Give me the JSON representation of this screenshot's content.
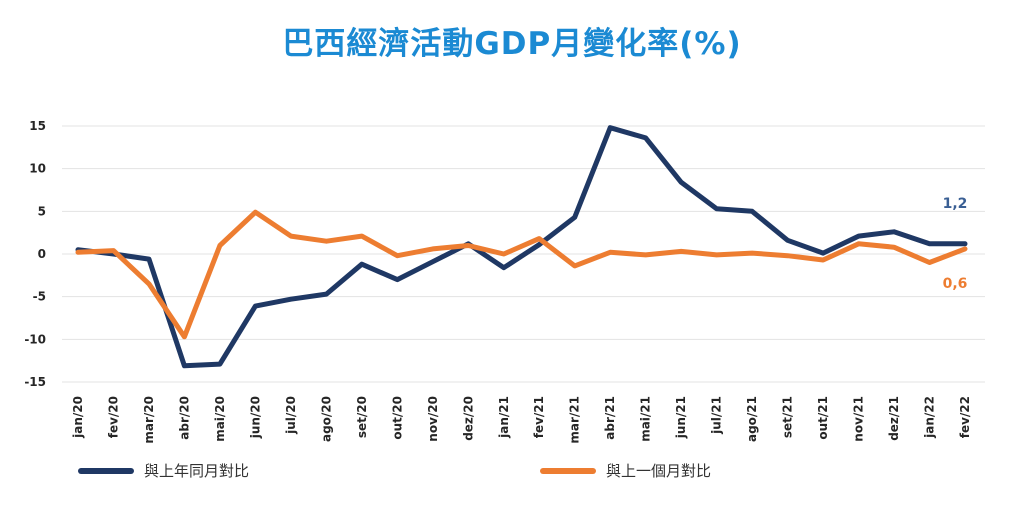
{
  "title": "巴西經濟活動GDP月變化率(%)",
  "chart_data": {
    "type": "line",
    "title": "巴西經濟活動GDP月變化率(%)",
    "categories": [
      "jan/20",
      "fev/20",
      "mar/20",
      "abr/20",
      "mai/20",
      "jun/20",
      "jul/20",
      "ago/20",
      "set/20",
      "out/20",
      "nov/20",
      "dez/20",
      "jan/21",
      "fev/21",
      "mar/21",
      "abr/21",
      "mai/21",
      "jun/21",
      "jul/21",
      "ago/21",
      "set/21",
      "out/21",
      "nov/21",
      "dez/21",
      "jan/22",
      "fev/22"
    ],
    "ylim": [
      -15,
      15
    ],
    "yticks": [
      15,
      10,
      5,
      0,
      -5,
      -10,
      -15
    ],
    "grid": true,
    "legend_position": "bottom",
    "series": [
      {
        "name": "與上年同月對比",
        "color": "#1f3864",
        "values": [
          0.5,
          0.0,
          -0.6,
          -13.1,
          -12.9,
          -6.1,
          -5.3,
          -4.7,
          -1.2,
          -3.0,
          -0.9,
          1.2,
          -1.6,
          1.1,
          4.3,
          14.8,
          13.6,
          8.4,
          5.3,
          5.0,
          1.6,
          0.1,
          2.1,
          2.6,
          1.2,
          1.2
        ],
        "end_label": "1,2"
      },
      {
        "name": "與上一個月對比",
        "color": "#ed7d31",
        "values": [
          0.2,
          0.4,
          -3.5,
          -9.7,
          1.0,
          4.9,
          2.1,
          1.5,
          2.1,
          -0.2,
          0.6,
          1.0,
          0.0,
          1.8,
          -1.4,
          0.2,
          -0.1,
          0.3,
          -0.1,
          0.1,
          -0.2,
          -0.7,
          1.2,
          0.8,
          -1.0,
          0.6
        ],
        "end_label": "0,6"
      }
    ]
  }
}
